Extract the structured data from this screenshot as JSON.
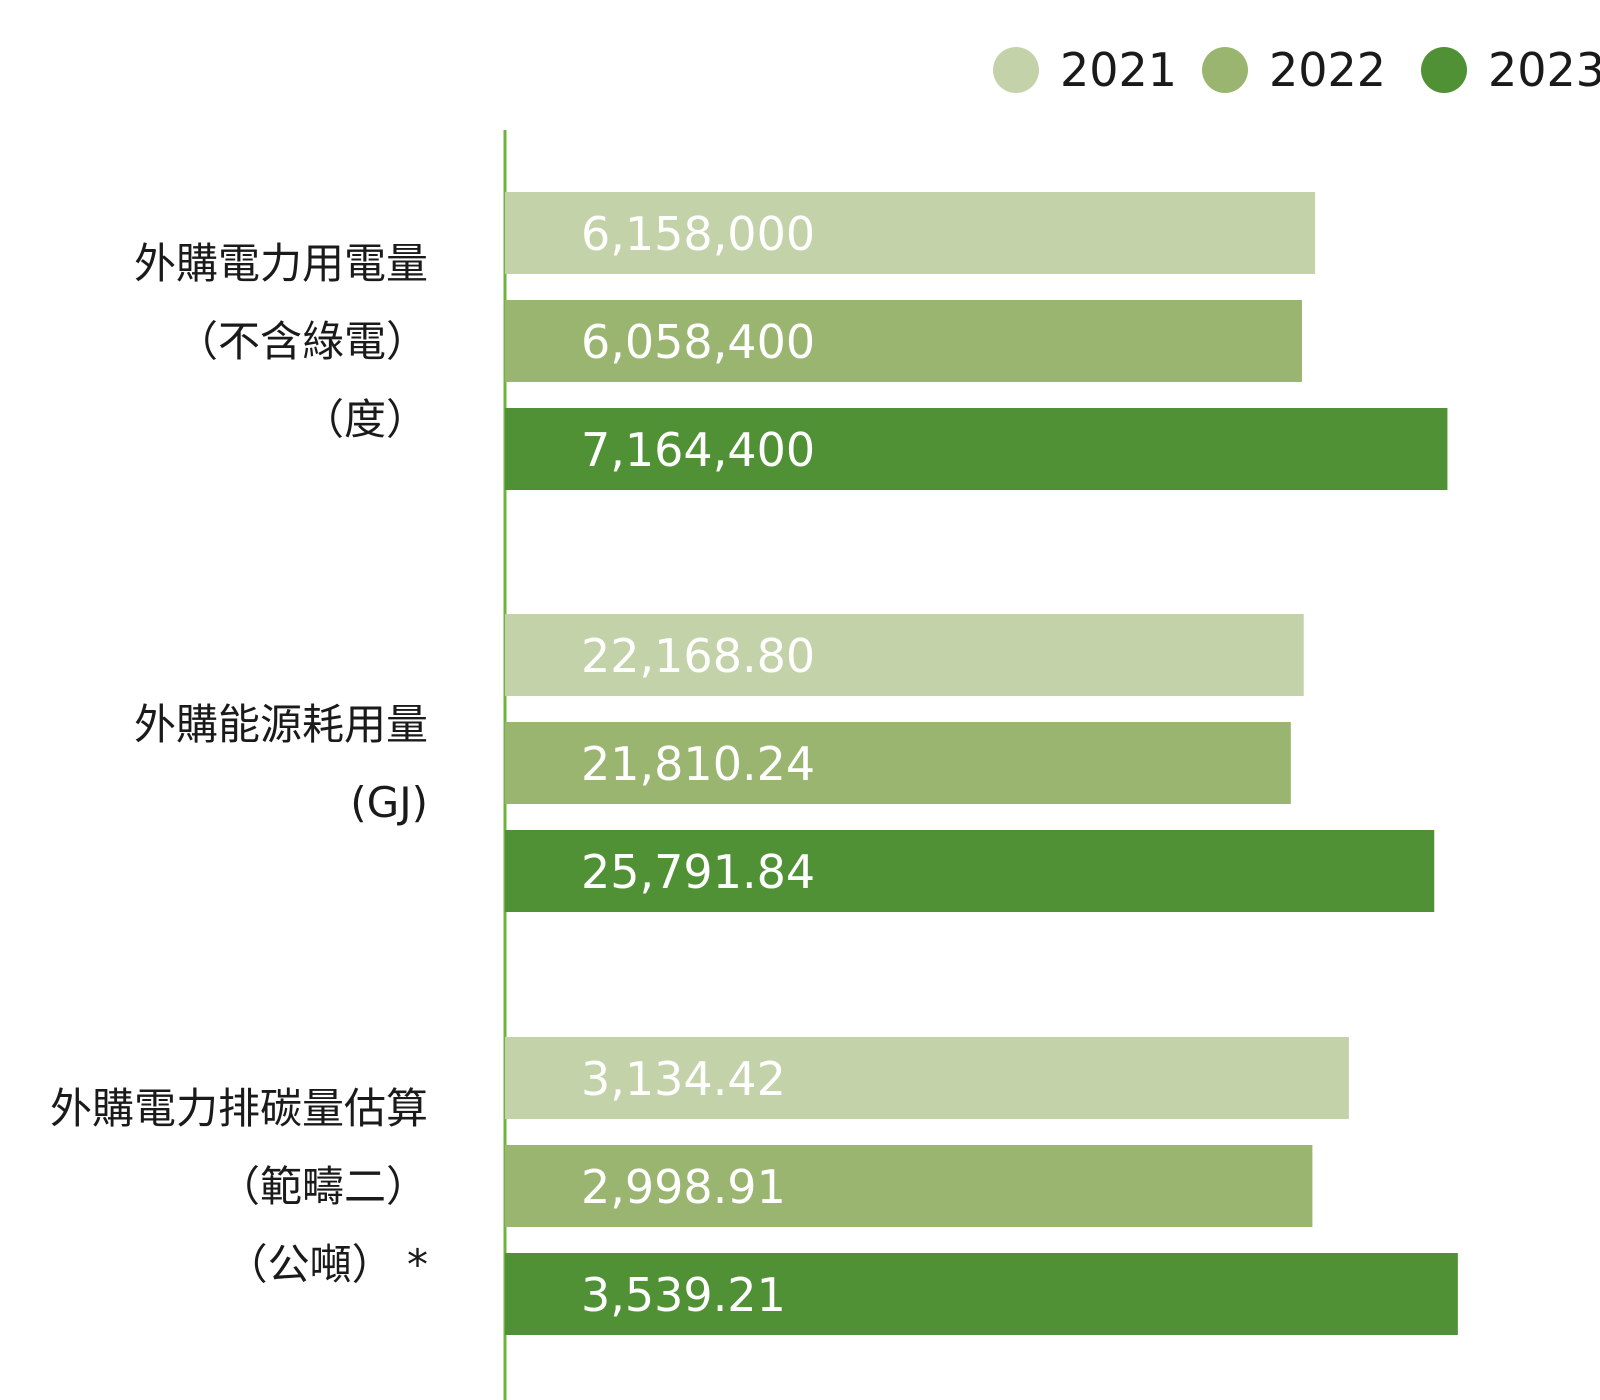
{
  "chart_data": {
    "type": "bar",
    "orientation": "horizontal",
    "title": "",
    "legend_position": "top-right",
    "grid": false,
    "series": [
      {
        "name": "2021",
        "color": "#c3d2a8"
      },
      {
        "name": "2022",
        "color": "#9ab56f"
      },
      {
        "name": "2023",
        "color": "#509135"
      }
    ],
    "axis_color": "#6fb33f",
    "groups": [
      {
        "label_lines": [
          "外購電力用電量",
          "（不含綠電）",
          "（度）"
        ],
        "values": [
          6158000,
          6058400,
          7164400
        ],
        "value_labels": [
          "6,158,000",
          "6,058,400",
          "7,164,400"
        ],
        "max": 7450000
      },
      {
        "label_lines": [
          "外購能源耗用量",
          "(GJ)"
        ],
        "values": [
          22168.8,
          21810.24,
          25791.84
        ],
        "value_labels": [
          "22,168.80",
          "21,810.24",
          "25,791.84"
        ],
        "max": 27200
      },
      {
        "label_lines": [
          "外購電力排碳量估算",
          "（範疇二）",
          "（公噸） *"
        ],
        "values": [
          3134.42,
          2998.91,
          3539.21
        ],
        "value_labels": [
          "3,134.42",
          "2,998.91",
          "3,539.21"
        ],
        "max": 3640
      }
    ]
  }
}
